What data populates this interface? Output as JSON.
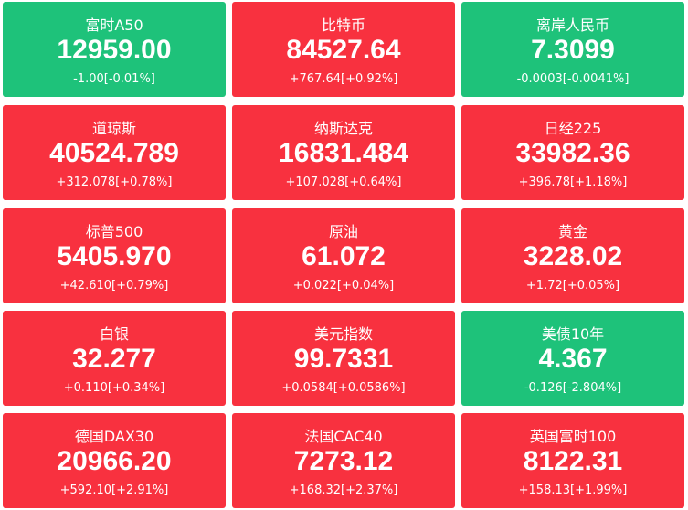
{
  "tiles": [
    {
      "name": "富时A50",
      "price": "12959.00",
      "change": "-1.00[-0.01%]",
      "color": "#1ec27a"
    },
    {
      "name": "比特币",
      "price": "84527.64",
      "change": "+767.64[+0.92%]",
      "color": "#f8313f"
    },
    {
      "name": "离岸人民币",
      "price": "7.3099",
      "change": "-0.0003[-0.0041%]",
      "color": "#1ec27a"
    },
    {
      "name": "道琼斯",
      "price": "40524.789",
      "change": "+312.078[+0.78%]",
      "color": "#f8313f"
    },
    {
      "name": "纳斯达克",
      "price": "16831.484",
      "change": "+107.028[+0.64%]",
      "color": "#f8313f"
    },
    {
      "name": "日经225",
      "price": "33982.36",
      "change": "+396.78[+1.18%]",
      "color": "#f8313f"
    },
    {
      "name": "标普500",
      "price": "5405.970",
      "change": "+42.610[+0.79%]",
      "color": "#f8313f"
    },
    {
      "name": "原油",
      "price": "61.072",
      "change": "+0.022[+0.04%]",
      "color": "#f8313f"
    },
    {
      "name": "黄金",
      "price": "3228.02",
      "change": "+1.72[+0.05%]",
      "color": "#f8313f"
    },
    {
      "name": "白银",
      "price": "32.277",
      "change": "+0.110[+0.34%]",
      "color": "#f8313f"
    },
    {
      "name": "美元指数",
      "price": "99.7331",
      "change": "+0.0584[+0.0586%]",
      "color": "#f8313f"
    },
    {
      "name": "美债10年",
      "price": "4.367",
      "change": "-0.126[-2.804%]",
      "color": "#1ec27a"
    },
    {
      "name": "德国DAX30",
      "price": "20966.20",
      "change": "+592.10[+2.91%]",
      "color": "#f8313f"
    },
    {
      "name": "法国CAC40",
      "price": "7273.12",
      "change": "+168.32[+2.37%]",
      "color": "#f8313f"
    },
    {
      "name": "英国富时100",
      "price": "8122.31",
      "change": "+158.13[+1.99%]",
      "color": "#f8313f"
    }
  ]
}
